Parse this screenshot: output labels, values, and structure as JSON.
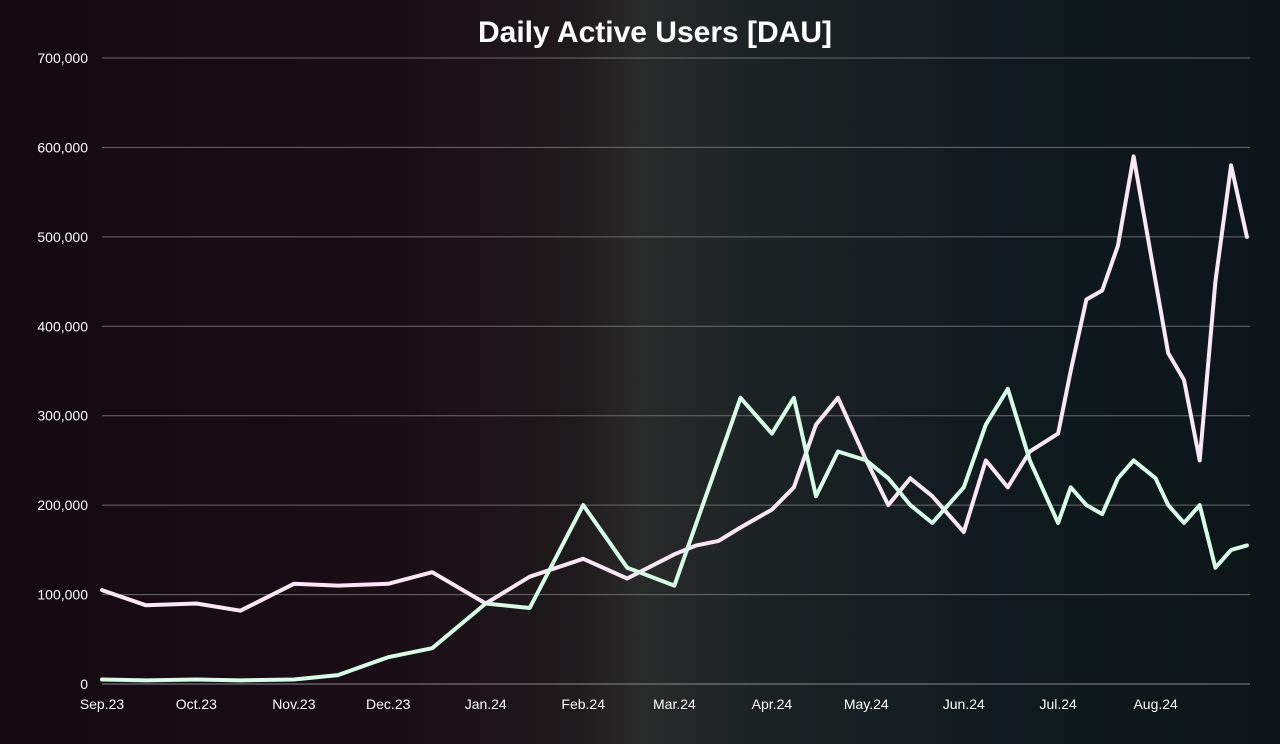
{
  "chart_data": {
    "type": "line",
    "title": "Daily Active Users [DAU]",
    "xlabel": "",
    "ylabel": "",
    "ylim": [
      0,
      700000
    ],
    "y_ticks": [
      "0",
      "100,000",
      "200,000",
      "300,000",
      "400,000",
      "500,000",
      "600,000",
      "700,000"
    ],
    "x_ticks": [
      "Sep.23",
      "Oct.23",
      "Nov.23",
      "Dec.23",
      "Jan.24",
      "Feb.24",
      "Mar.24",
      "Apr.24",
      "May.24",
      "Jun.24",
      "Jul.24",
      "Aug.24"
    ],
    "grid": true,
    "legend": "none",
    "x": [
      "2023-09-01",
      "2023-09-15",
      "2023-10-01",
      "2023-10-15",
      "2023-11-01",
      "2023-11-15",
      "2023-12-01",
      "2023-12-15",
      "2024-01-01",
      "2024-01-15",
      "2024-02-01",
      "2024-02-15",
      "2024-03-01",
      "2024-03-08",
      "2024-03-15",
      "2024-03-22",
      "2024-04-01",
      "2024-04-08",
      "2024-04-15",
      "2024-04-22",
      "2024-05-01",
      "2024-05-08",
      "2024-05-15",
      "2024-05-22",
      "2024-06-01",
      "2024-06-08",
      "2024-06-15",
      "2024-06-22",
      "2024-07-01",
      "2024-07-05",
      "2024-07-10",
      "2024-07-15",
      "2024-07-20",
      "2024-07-25",
      "2024-08-01",
      "2024-08-05",
      "2024-08-10",
      "2024-08-15",
      "2024-08-20",
      "2024-08-25",
      "2024-08-30"
    ],
    "series": [
      {
        "color": "#fbe6f6",
        "values": [
          105000,
          88000,
          90000,
          82000,
          112000,
          110000,
          112000,
          125000,
          90000,
          120000,
          140000,
          118000,
          145000,
          155000,
          160000,
          175000,
          195000,
          220000,
          290000,
          320000,
          250000,
          200000,
          230000,
          210000,
          170000,
          250000,
          220000,
          260000,
          280000,
          350000,
          430000,
          440000,
          490000,
          590000,
          450000,
          370000,
          340000,
          250000,
          450000,
          580000,
          500000
        ]
      },
      {
        "color": "#d6fce6",
        "values": [
          5000,
          4000,
          5000,
          4000,
          5000,
          10000,
          30000,
          40000,
          90000,
          85000,
          200000,
          130000,
          110000,
          180000,
          250000,
          320000,
          280000,
          320000,
          210000,
          260000,
          250000,
          230000,
          200000,
          180000,
          220000,
          290000,
          330000,
          250000,
          180000,
          220000,
          200000,
          190000,
          230000,
          250000,
          230000,
          200000,
          180000,
          200000,
          130000,
          150000,
          155000
        ]
      }
    ]
  }
}
